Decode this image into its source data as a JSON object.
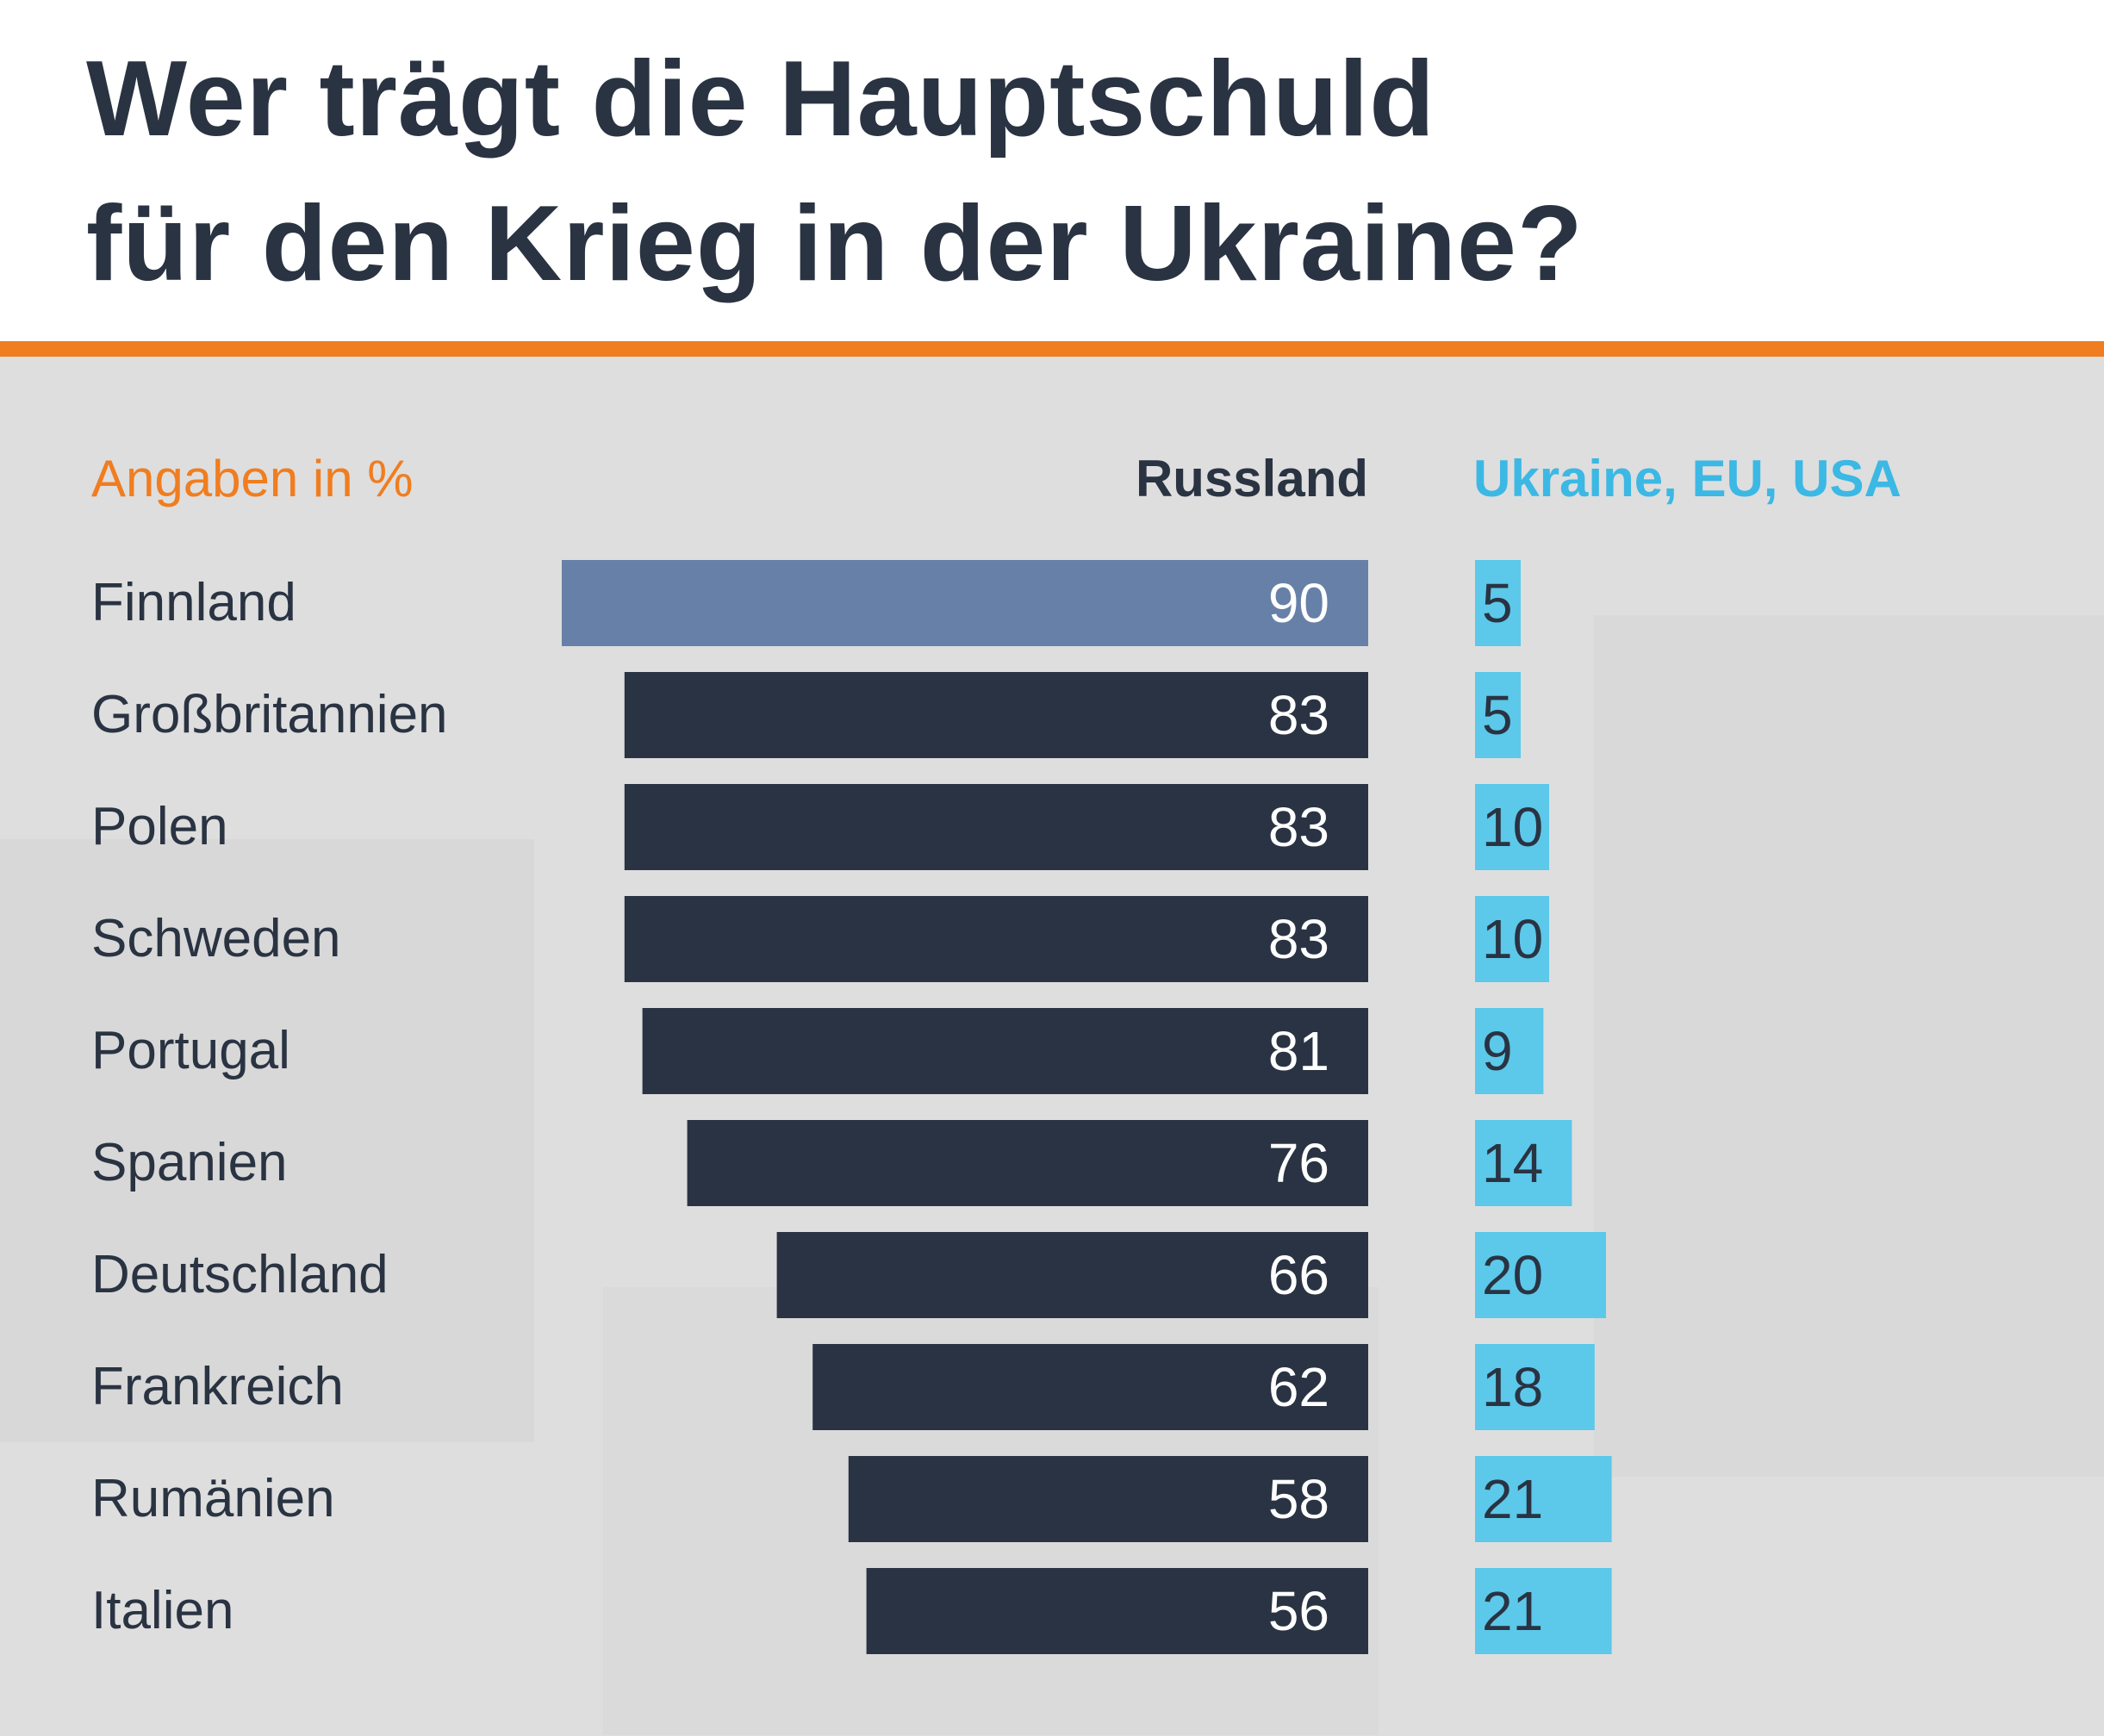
{
  "header": {
    "title_line_1": "Wer trägt die Hauptschuld",
    "title_line_2": "für den Krieg in der Ukraine?"
  },
  "colors": {
    "accent": "#f07d1f",
    "background": "#dedede",
    "text_dark": "#2a3342",
    "bar_dark": "#2a3343",
    "bar_highlight": "#6780a8",
    "bar_light": "#5cc8ea",
    "bar_label_light": "#ffffff",
    "series2_label": "#3cb8e4"
  },
  "chart_data": {
    "type": "bar",
    "orientation": "horizontal",
    "unit_label": "Angaben in %",
    "categories": [
      "Finnland",
      "Großbritannien",
      "Polen",
      "Schweden",
      "Portugal",
      "Spanien",
      "Deutschland",
      "Frankreich",
      "Rumänien",
      "Italien"
    ],
    "series": [
      {
        "name": "Russland",
        "values": [
          90,
          83,
          83,
          83,
          81,
          76,
          66,
          62,
          58,
          56
        ]
      },
      {
        "name": "Ukraine, EU, USA",
        "values": [
          5,
          5,
          10,
          10,
          9,
          14,
          20,
          18,
          21,
          21
        ]
      }
    ],
    "highlighted_category": "Finnland",
    "grid": false,
    "legend": "top"
  }
}
